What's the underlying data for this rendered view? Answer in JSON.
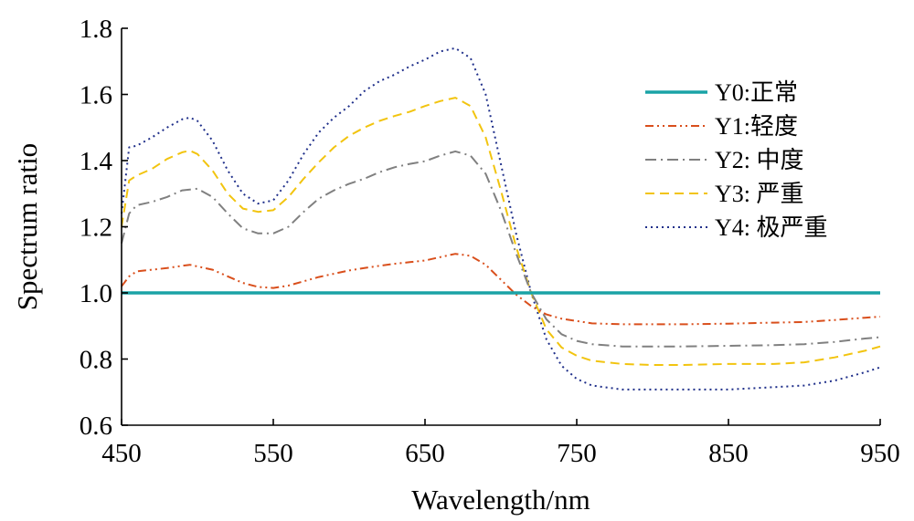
{
  "chart_data": {
    "type": "line",
    "title": "",
    "xlabel": "Wavelength/nm",
    "ylabel": "Spectrum ratio",
    "xlim": [
      450,
      950
    ],
    "ylim": [
      0.6,
      1.8
    ],
    "xticks": [
      450,
      550,
      650,
      750,
      850,
      950
    ],
    "xtick_labels": [
      "450",
      "550",
      "650",
      "750",
      "850",
      "950"
    ],
    "yticks": [
      0.6,
      0.8,
      1.0,
      1.2,
      1.4,
      1.6,
      1.8
    ],
    "ytick_labels": [
      "0.6",
      "0.8",
      "1.0",
      "1.2",
      "1.4",
      "1.6",
      "1.8"
    ],
    "grid": false,
    "legend_position": "top-right",
    "series": [
      {
        "name": "Y0:正常",
        "color": "#1aa3a6",
        "dash": "solid",
        "x": [
          450,
          950
        ],
        "y": [
          1.0,
          1.0
        ]
      },
      {
        "name": "Y1:轻度",
        "color": "#d94f1c",
        "dash": "dashdotdot",
        "x": [
          450,
          455,
          460,
          470,
          480,
          490,
          495,
          500,
          510,
          520,
          530,
          540,
          550,
          560,
          570,
          580,
          590,
          600,
          610,
          620,
          630,
          640,
          650,
          660,
          670,
          680,
          690,
          700,
          710,
          720,
          730,
          740,
          750,
          760,
          780,
          800,
          820,
          850,
          880,
          900,
          920,
          940,
          950
        ],
        "y": [
          1.02,
          1.05,
          1.065,
          1.07,
          1.075,
          1.082,
          1.085,
          1.08,
          1.07,
          1.05,
          1.03,
          1.018,
          1.015,
          1.022,
          1.035,
          1.048,
          1.058,
          1.068,
          1.075,
          1.082,
          1.088,
          1.093,
          1.098,
          1.108,
          1.118,
          1.112,
          1.085,
          1.04,
          0.995,
          0.96,
          0.935,
          0.922,
          0.915,
          0.908,
          0.905,
          0.905,
          0.905,
          0.907,
          0.91,
          0.912,
          0.918,
          0.925,
          0.928
        ]
      },
      {
        "name": "Y2: 中度",
        "color": "#808080",
        "dash": "dashdot",
        "x": [
          450,
          455,
          460,
          470,
          480,
          490,
          500,
          510,
          520,
          530,
          540,
          550,
          560,
          570,
          580,
          590,
          600,
          610,
          620,
          630,
          640,
          650,
          660,
          670,
          680,
          690,
          700,
          710,
          720,
          730,
          740,
          750,
          760,
          780,
          800,
          820,
          850,
          880,
          900,
          920,
          940,
          950
        ],
        "y": [
          1.15,
          1.24,
          1.265,
          1.275,
          1.29,
          1.31,
          1.315,
          1.29,
          1.24,
          1.195,
          1.18,
          1.18,
          1.2,
          1.245,
          1.285,
          1.31,
          1.33,
          1.345,
          1.365,
          1.38,
          1.39,
          1.398,
          1.415,
          1.428,
          1.415,
          1.36,
          1.25,
          1.12,
          1.0,
          0.92,
          0.875,
          0.855,
          0.845,
          0.838,
          0.838,
          0.838,
          0.84,
          0.842,
          0.845,
          0.852,
          0.862,
          0.866
        ]
      },
      {
        "name": "Y3: 严重",
        "color": "#f2c40f",
        "dash": "dashed",
        "x": [
          450,
          455,
          460,
          470,
          480,
          490,
          495,
          500,
          510,
          520,
          530,
          540,
          550,
          560,
          570,
          580,
          590,
          600,
          610,
          620,
          630,
          640,
          650,
          660,
          670,
          680,
          690,
          700,
          710,
          720,
          730,
          740,
          750,
          760,
          780,
          800,
          820,
          850,
          880,
          900,
          920,
          940,
          950
        ],
        "y": [
          1.2,
          1.34,
          1.355,
          1.375,
          1.405,
          1.425,
          1.43,
          1.42,
          1.37,
          1.3,
          1.255,
          1.245,
          1.25,
          1.29,
          1.345,
          1.395,
          1.44,
          1.475,
          1.5,
          1.52,
          1.535,
          1.548,
          1.565,
          1.58,
          1.59,
          1.565,
          1.47,
          1.31,
          1.14,
          1.0,
          0.89,
          0.835,
          0.81,
          0.795,
          0.785,
          0.782,
          0.782,
          0.785,
          0.785,
          0.79,
          0.805,
          0.825,
          0.838
        ]
      },
      {
        "name": "Y4: 极严重",
        "color": "#1f2f8a",
        "dash": "dotted",
        "x": [
          450,
          455,
          460,
          470,
          480,
          490,
          495,
          500,
          510,
          520,
          530,
          540,
          550,
          560,
          570,
          580,
          590,
          600,
          610,
          620,
          630,
          640,
          650,
          660,
          670,
          680,
          690,
          700,
          710,
          720,
          730,
          740,
          750,
          760,
          780,
          800,
          820,
          850,
          880,
          900,
          920,
          940,
          950
        ],
        "y": [
          1.24,
          1.44,
          1.445,
          1.47,
          1.5,
          1.525,
          1.53,
          1.52,
          1.46,
          1.37,
          1.3,
          1.27,
          1.28,
          1.34,
          1.42,
          1.485,
          1.53,
          1.565,
          1.61,
          1.64,
          1.66,
          1.685,
          1.705,
          1.73,
          1.74,
          1.71,
          1.6,
          1.39,
          1.18,
          1.0,
          0.86,
          0.78,
          0.74,
          0.72,
          0.708,
          0.708,
          0.708,
          0.708,
          0.715,
          0.72,
          0.735,
          0.76,
          0.775
        ]
      }
    ]
  }
}
